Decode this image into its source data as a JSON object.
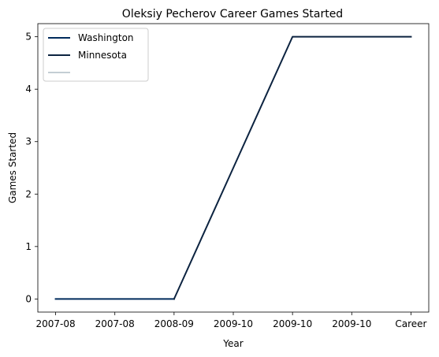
{
  "chart_data": {
    "type": "line",
    "title": "Oleksiy Pecherov Career Games Started",
    "xlabel": "Year",
    "ylabel": "Games Started",
    "categories": [
      "2007-08",
      "2007-08",
      "2008-09",
      "2009-10",
      "2009-10",
      "2009-10",
      "Career"
    ],
    "ylim": [
      -0.25,
      5.25
    ],
    "yticks": [
      0,
      1,
      2,
      3,
      4,
      5
    ],
    "grid": false,
    "legend_position": "top-left",
    "series": [
      {
        "name": "Washington",
        "color": "#002B5C",
        "points": [
          [
            0,
            0
          ],
          [
            1,
            0
          ],
          [
            2,
            0
          ]
        ]
      },
      {
        "name": "Minnesota",
        "color": "#0C2340",
        "points": [
          [
            2,
            0
          ],
          [
            3,
            2.5
          ],
          [
            4,
            5
          ],
          [
            5,
            5
          ],
          [
            6,
            5
          ]
        ]
      },
      {
        "name": "",
        "color": "#C4CED4",
        "points": []
      }
    ]
  }
}
